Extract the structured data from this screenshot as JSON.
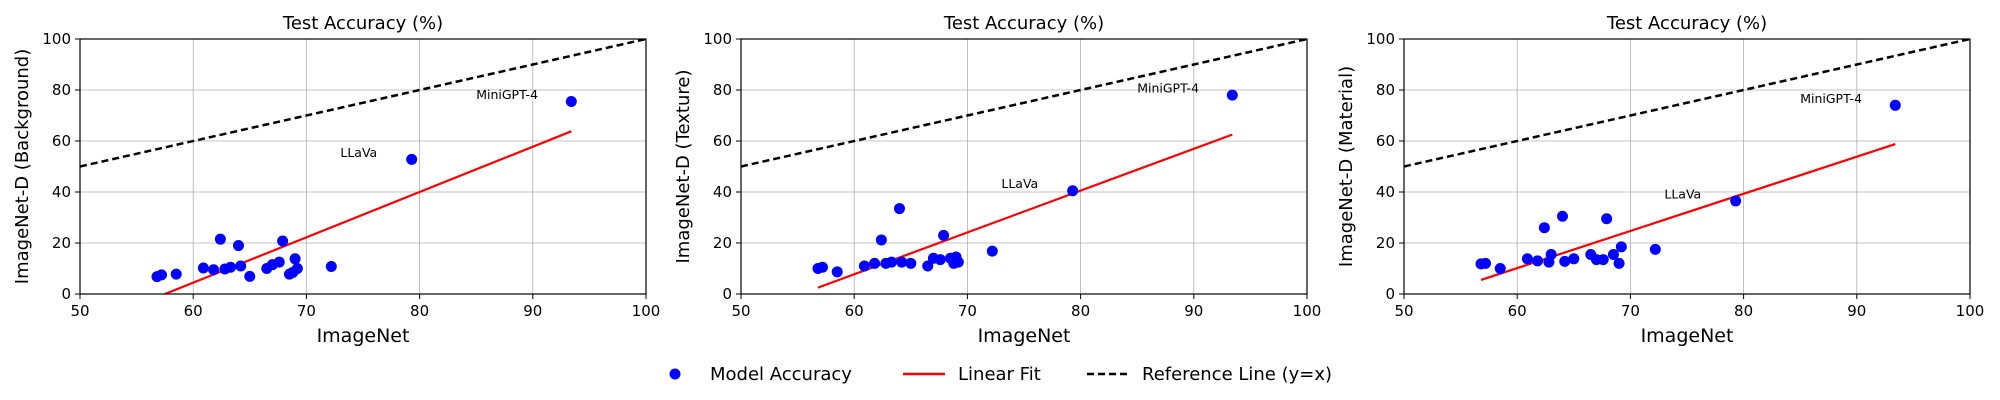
{
  "colors": {
    "points": "#0000ff",
    "fit": "#ff0000",
    "reference": "#000000",
    "grid": "#b0b0b0"
  },
  "legend": {
    "points_label": "Model Accuracy",
    "fit_label": "Linear Fit",
    "reference_label": "Reference Line (y=x)"
  },
  "chart_data": [
    {
      "type": "scatter",
      "title": "Test Accuracy (%)",
      "xlabel": "ImageNet",
      "ylabel": "ImageNet-D (Background)",
      "xlim": [
        50,
        100
      ],
      "ylim": [
        0,
        100
      ],
      "xticks": [
        50,
        60,
        70,
        80,
        90,
        100
      ],
      "yticks": [
        0,
        20,
        40,
        60,
        80,
        100
      ],
      "grid": true,
      "points": [
        {
          "x": 56.8,
          "y": 6.8
        },
        {
          "x": 57.2,
          "y": 7.5
        },
        {
          "x": 58.5,
          "y": 7.8
        },
        {
          "x": 60.9,
          "y": 10.2
        },
        {
          "x": 61.8,
          "y": 9.5
        },
        {
          "x": 62.4,
          "y": 21.5
        },
        {
          "x": 62.8,
          "y": 9.8
        },
        {
          "x": 63.3,
          "y": 10.5
        },
        {
          "x": 64.0,
          "y": 19.0
        },
        {
          "x": 64.2,
          "y": 11.0
        },
        {
          "x": 65.0,
          "y": 6.9
        },
        {
          "x": 66.5,
          "y": 10.0
        },
        {
          "x": 67.0,
          "y": 11.5
        },
        {
          "x": 67.6,
          "y": 12.5
        },
        {
          "x": 67.9,
          "y": 20.8
        },
        {
          "x": 68.5,
          "y": 7.8
        },
        {
          "x": 68.8,
          "y": 8.5
        },
        {
          "x": 69.0,
          "y": 13.8
        },
        {
          "x": 69.2,
          "y": 10.0
        },
        {
          "x": 72.2,
          "y": 10.8
        },
        {
          "x": 79.3,
          "y": 52.8
        },
        {
          "x": 93.4,
          "y": 75.5
        }
      ],
      "fit": {
        "x": [
          57.5,
          93.4
        ],
        "y": [
          0.0,
          63.8
        ]
      },
      "annotations": [
        {
          "text": "LLaVa",
          "x": 73.0,
          "y": 53.8
        },
        {
          "text": "MiniGPT-4",
          "x": 85.0,
          "y": 76.5
        }
      ]
    },
    {
      "type": "scatter",
      "title": "Test Accuracy (%)",
      "xlabel": "ImageNet",
      "ylabel": "ImageNet-D (Texture)",
      "xlim": [
        50,
        100
      ],
      "ylim": [
        0,
        100
      ],
      "xticks": [
        50,
        60,
        70,
        80,
        90,
        100
      ],
      "yticks": [
        0,
        20,
        40,
        60,
        80,
        100
      ],
      "grid": true,
      "points": [
        {
          "x": 56.8,
          "y": 10.0
        },
        {
          "x": 57.2,
          "y": 10.5
        },
        {
          "x": 58.5,
          "y": 8.7
        },
        {
          "x": 60.9,
          "y": 11.0
        },
        {
          "x": 61.8,
          "y": 12.0
        },
        {
          "x": 62.4,
          "y": 21.2
        },
        {
          "x": 62.8,
          "y": 12.0
        },
        {
          "x": 63.3,
          "y": 12.5
        },
        {
          "x": 64.0,
          "y": 33.5
        },
        {
          "x": 64.2,
          "y": 12.5
        },
        {
          "x": 65.0,
          "y": 12.0
        },
        {
          "x": 66.5,
          "y": 11.0
        },
        {
          "x": 67.0,
          "y": 14.0
        },
        {
          "x": 67.6,
          "y": 13.5
        },
        {
          "x": 67.9,
          "y": 23.0
        },
        {
          "x": 68.5,
          "y": 14.0
        },
        {
          "x": 68.8,
          "y": 12.0
        },
        {
          "x": 69.0,
          "y": 14.5
        },
        {
          "x": 69.2,
          "y": 12.5
        },
        {
          "x": 72.2,
          "y": 16.8
        },
        {
          "x": 79.3,
          "y": 40.5
        },
        {
          "x": 93.4,
          "y": 78.0
        }
      ],
      "fit": {
        "x": [
          56.8,
          93.4
        ],
        "y": [
          2.5,
          62.5
        ]
      },
      "annotations": [
        {
          "text": "LLaVa",
          "x": 73.0,
          "y": 41.5
        },
        {
          "text": "MiniGPT-4",
          "x": 85.0,
          "y": 79.0
        }
      ]
    },
    {
      "type": "scatter",
      "title": "Test Accuracy (%)",
      "xlabel": "ImageNet",
      "ylabel": "ImageNet-D (Material)",
      "xlim": [
        50,
        100
      ],
      "ylim": [
        0,
        100
      ],
      "xticks": [
        50,
        60,
        70,
        80,
        90,
        100
      ],
      "yticks": [
        0,
        20,
        40,
        60,
        80,
        100
      ],
      "grid": true,
      "points": [
        {
          "x": 56.8,
          "y": 11.8
        },
        {
          "x": 57.2,
          "y": 12.0
        },
        {
          "x": 58.5,
          "y": 10.0
        },
        {
          "x": 60.9,
          "y": 13.8
        },
        {
          "x": 61.8,
          "y": 13.0
        },
        {
          "x": 62.4,
          "y": 26.0
        },
        {
          "x": 62.8,
          "y": 12.5
        },
        {
          "x": 63.0,
          "y": 15.5
        },
        {
          "x": 64.0,
          "y": 30.5
        },
        {
          "x": 64.2,
          "y": 12.8
        },
        {
          "x": 65.0,
          "y": 13.8
        },
        {
          "x": 66.5,
          "y": 15.5
        },
        {
          "x": 67.0,
          "y": 13.5
        },
        {
          "x": 67.6,
          "y": 13.5
        },
        {
          "x": 67.9,
          "y": 29.5
        },
        {
          "x": 68.5,
          "y": 15.5
        },
        {
          "x": 69.0,
          "y": 12.0
        },
        {
          "x": 69.2,
          "y": 18.5
        },
        {
          "x": 72.2,
          "y": 17.5
        },
        {
          "x": 79.3,
          "y": 36.5
        },
        {
          "x": 93.4,
          "y": 74.0
        }
      ],
      "fit": {
        "x": [
          56.8,
          93.4
        ],
        "y": [
          5.5,
          58.8
        ]
      },
      "annotations": [
        {
          "text": "LLaVa",
          "x": 73.0,
          "y": 37.5
        },
        {
          "text": "MiniGPT-4",
          "x": 85.0,
          "y": 75.0
        }
      ]
    }
  ]
}
